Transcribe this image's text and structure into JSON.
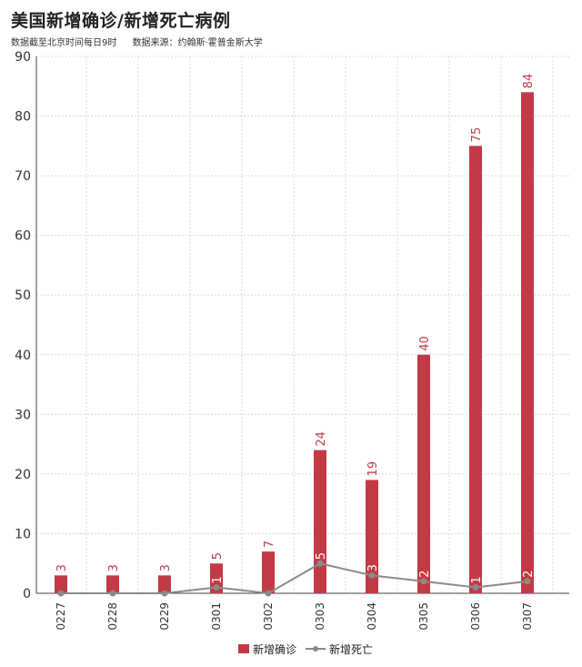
{
  "header": {
    "title": "美国新增确诊/新增死亡病例",
    "note_time": "数据截至北京时间每日9时",
    "note_source": "数据来源：约翰斯·霍普金斯大学"
  },
  "colors": {
    "bar": "#c23a45",
    "line": "#8a8a8a",
    "grid": "#d9d9d9",
    "axis": "#444444"
  },
  "chart_data": {
    "type": "bar",
    "categories": [
      "0227",
      "0228",
      "0229",
      "0301",
      "0302",
      "0303",
      "0304",
      "0305",
      "0306",
      "0307"
    ],
    "series": [
      {
        "name": "新增确诊",
        "type": "bar",
        "values": [
          3,
          3,
          3,
          5,
          7,
          24,
          19,
          40,
          75,
          84
        ]
      },
      {
        "name": "新增死亡",
        "type": "line",
        "values": [
          0,
          0,
          0,
          1,
          0,
          5,
          3,
          2,
          1,
          2
        ]
      }
    ],
    "ylim": [
      0,
      90
    ],
    "yticks": [
      0,
      10,
      20,
      30,
      40,
      50,
      60,
      70,
      80,
      90
    ],
    "grid": true,
    "legend_position": "bottom-center"
  }
}
